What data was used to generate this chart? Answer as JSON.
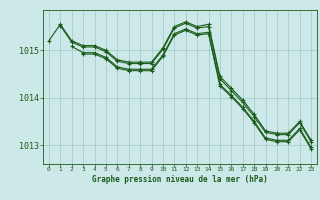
{
  "background_color": "#cce8e8",
  "grid_color": "#aacccc",
  "line_color": "#1a5c1a",
  "x_labels": [
    "0",
    "1",
    "2",
    "3",
    "4",
    "5",
    "6",
    "7",
    "8",
    "9",
    "10",
    "11",
    "12",
    "13",
    "14",
    "15",
    "16",
    "17",
    "18",
    "19",
    "20",
    "21",
    "22",
    "23"
  ],
  "xlabel": "Graphe pression niveau de la mer (hPa)",
  "yticks": [
    1013,
    1014,
    1015
  ],
  "ylim": [
    1012.6,
    1015.85
  ],
  "xlim": [
    -0.5,
    23.5
  ],
  "series": [
    {
      "x": [
        0,
        1,
        2,
        3,
        4,
        5,
        6,
        7,
        8,
        9,
        10,
        11,
        12,
        13,
        14,
        15,
        16,
        17,
        18,
        19,
        20,
        21,
        22,
        23
      ],
      "y": [
        1015.2,
        1015.55,
        1015.2,
        1015.1,
        1015.1,
        1015.0,
        1014.8,
        1014.75,
        1014.75,
        1014.75,
        1015.05,
        1015.5,
        1015.6,
        1015.5,
        1015.55,
        1014.45,
        1014.2,
        1013.95,
        1013.65,
        1013.3,
        1013.25,
        1013.25,
        1013.5,
        1013.1
      ]
    },
    {
      "x": [
        1,
        2,
        3,
        4,
        5,
        6,
        7,
        8,
        9,
        10,
        11,
        12,
        13,
        14,
        15,
        16,
        17,
        18,
        19,
        20,
        21,
        22,
        23
      ],
      "y": [
        1015.52,
        1015.17,
        1015.07,
        1015.07,
        1014.97,
        1014.77,
        1014.72,
        1014.72,
        1014.72,
        1015.02,
        1015.47,
        1015.57,
        1015.47,
        1015.5,
        1014.4,
        1014.15,
        1013.9,
        1013.6,
        1013.27,
        1013.22,
        1013.22,
        1013.47,
        1013.07
      ]
    },
    {
      "x": [
        2,
        3,
        4,
        5,
        6,
        7,
        8,
        9,
        10,
        11,
        12,
        13,
        14,
        15,
        16,
        17,
        18,
        19,
        20,
        21,
        22,
        23
      ],
      "y": [
        1015.08,
        1014.95,
        1014.95,
        1014.85,
        1014.65,
        1014.6,
        1014.6,
        1014.6,
        1014.9,
        1015.35,
        1015.45,
        1015.35,
        1015.38,
        1014.28,
        1014.05,
        1013.8,
        1013.5,
        1013.15,
        1013.1,
        1013.1,
        1013.35,
        1012.95
      ]
    },
    {
      "x": [
        3,
        4,
        5,
        6,
        7,
        8,
        9,
        10,
        11,
        12,
        13,
        14,
        15,
        16,
        17,
        18,
        19,
        20,
        21,
        22,
        23
      ],
      "y": [
        1014.92,
        1014.92,
        1014.82,
        1014.62,
        1014.57,
        1014.57,
        1014.57,
        1014.87,
        1015.32,
        1015.42,
        1015.32,
        1015.35,
        1014.25,
        1014.02,
        1013.77,
        1013.47,
        1013.12,
        1013.07,
        1013.07,
        1013.32,
        1012.92
      ]
    }
  ]
}
